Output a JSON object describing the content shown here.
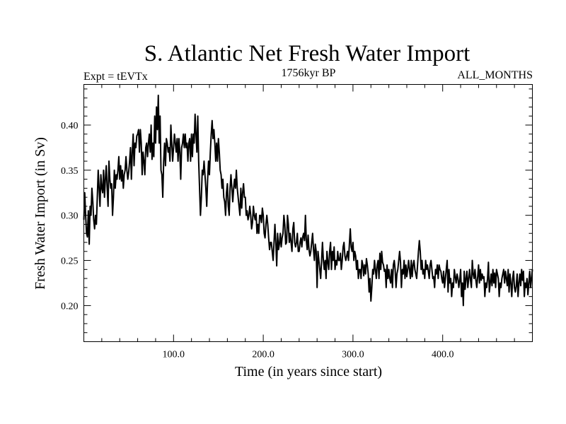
{
  "chart_data": {
    "type": "line",
    "title": "S. Atlantic Net Fresh Water Import",
    "subtitle_left": "Expt = tEVTx",
    "subtitle_center": "1756kyr BP",
    "subtitle_right": "ALL_MONTHS",
    "xlabel": "Time (in years since start)",
    "ylabel": "Fresh Water Import (in Sv)",
    "xlim": [
      0,
      500
    ],
    "ylim": [
      0.16,
      0.445
    ],
    "x_major_ticks": [
      100,
      200,
      300,
      400
    ],
    "x_tick_labels": [
      "100.0",
      "200.0",
      "300.0",
      "400.0"
    ],
    "y_major_ticks": [
      0.2,
      0.25,
      0.3,
      0.35,
      0.4
    ],
    "y_tick_labels": [
      "0.20",
      "0.25",
      "0.30",
      "0.35",
      "0.40"
    ],
    "grid": false,
    "series": [
      {
        "name": "Net Fresh Water Import",
        "x_start": 0,
        "x_step": 1,
        "values": [
          0.295,
          0.325,
          0.3,
          0.28,
          0.276,
          0.305,
          0.268,
          0.31,
          0.3,
          0.33,
          0.315,
          0.295,
          0.285,
          0.3,
          0.29,
          0.32,
          0.35,
          0.33,
          0.31,
          0.345,
          0.33,
          0.325,
          0.35,
          0.32,
          0.34,
          0.355,
          0.33,
          0.31,
          0.36,
          0.34,
          0.33,
          0.335,
          0.3,
          0.32,
          0.35,
          0.33,
          0.345,
          0.34,
          0.35,
          0.365,
          0.34,
          0.355,
          0.338,
          0.35,
          0.33,
          0.345,
          0.35,
          0.365,
          0.35,
          0.34,
          0.348,
          0.36,
          0.375,
          0.34,
          0.37,
          0.39,
          0.355,
          0.38,
          0.375,
          0.388,
          0.39,
          0.395,
          0.37,
          0.395,
          0.38,
          0.345,
          0.37,
          0.36,
          0.345,
          0.375,
          0.38,
          0.365,
          0.38,
          0.39,
          0.37,
          0.4,
          0.362,
          0.38,
          0.365,
          0.41,
          0.38,
          0.42,
          0.395,
          0.433,
          0.38,
          0.41,
          0.35,
          0.345,
          0.32,
          0.36,
          0.38,
          0.355,
          0.385,
          0.38,
          0.37,
          0.375,
          0.36,
          0.4,
          0.38,
          0.36,
          0.375,
          0.39,
          0.38,
          0.37,
          0.385,
          0.36,
          0.385,
          0.37,
          0.34,
          0.375,
          0.38,
          0.39,
          0.375,
          0.39,
          0.375,
          0.38,
          0.36,
          0.38,
          0.385,
          0.36,
          0.39,
          0.365,
          0.39,
          0.38,
          0.412,
          0.39,
          0.37,
          0.41,
          0.36,
          0.33,
          0.3,
          0.32,
          0.35,
          0.345,
          0.36,
          0.345,
          0.33,
          0.31,
          0.34,
          0.36,
          0.345,
          0.37,
          0.39,
          0.405,
          0.385,
          0.395,
          0.38,
          0.36,
          0.38,
          0.36,
          0.385,
          0.37,
          0.35,
          0.345,
          0.33,
          0.34,
          0.32,
          0.315,
          0.3,
          0.325,
          0.335,
          0.31,
          0.3,
          0.33,
          0.345,
          0.33,
          0.315,
          0.33,
          0.34,
          0.33,
          0.35,
          0.33,
          0.32,
          0.31,
          0.3,
          0.33,
          0.308,
          0.325,
          0.335,
          0.32,
          0.32,
          0.3,
          0.305,
          0.295,
          0.3,
          0.31,
          0.3,
          0.285,
          0.292,
          0.31,
          0.3,
          0.295,
          0.302,
          0.28,
          0.29,
          0.28,
          0.3,
          0.3,
          0.292,
          0.308,
          0.3,
          0.28,
          0.275,
          0.29,
          0.3,
          0.29,
          0.275,
          0.262,
          0.27,
          0.27,
          0.26,
          0.25,
          0.27,
          0.29,
          0.27,
          0.244,
          0.28,
          0.262,
          0.268,
          0.28,
          0.265,
          0.275,
          0.28,
          0.3,
          0.29,
          0.268,
          0.27,
          0.3,
          0.29,
          0.27,
          0.28,
          0.27,
          0.26,
          0.285,
          0.292,
          0.27,
          0.265,
          0.27,
          0.28,
          0.26,
          0.26,
          0.27,
          0.275,
          0.265,
          0.276,
          0.28,
          0.272,
          0.3,
          0.272,
          0.262,
          0.278,
          0.262,
          0.255,
          0.26,
          0.27,
          0.28,
          0.262,
          0.25,
          0.268,
          0.26,
          0.22,
          0.26,
          0.25,
          0.24,
          0.23,
          0.25,
          0.27,
          0.25,
          0.24,
          0.25,
          0.23,
          0.26,
          0.248,
          0.24,
          0.26,
          0.27,
          0.24,
          0.26,
          0.25,
          0.265,
          0.24,
          0.25,
          0.245,
          0.26,
          0.25,
          0.25,
          0.258,
          0.24,
          0.25,
          0.265,
          0.27,
          0.255,
          0.25,
          0.255,
          0.26,
          0.25,
          0.268,
          0.285,
          0.265,
          0.26,
          0.27,
          0.25,
          0.26,
          0.255,
          0.24,
          0.25,
          0.23,
          0.24,
          0.24,
          0.23,
          0.25,
          0.245,
          0.233,
          0.245,
          0.235,
          0.252,
          0.245,
          0.235,
          0.215,
          0.23,
          0.205,
          0.22,
          0.24,
          0.235,
          0.25,
          0.24,
          0.23,
          0.245,
          0.25,
          0.23,
          0.258,
          0.24,
          0.26,
          0.248,
          0.245,
          0.238,
          0.24,
          0.22,
          0.245,
          0.23,
          0.24,
          0.23,
          0.225,
          0.24,
          0.22,
          0.245,
          0.25,
          0.24,
          0.22,
          0.235,
          0.24,
          0.25,
          0.26,
          0.248,
          0.22,
          0.24,
          0.235,
          0.25,
          0.23,
          0.245,
          0.232,
          0.24,
          0.25,
          0.24,
          0.23,
          0.25,
          0.232,
          0.245,
          0.25,
          0.24,
          0.235,
          0.23,
          0.245,
          0.26,
          0.272,
          0.26,
          0.24,
          0.25,
          0.235,
          0.24,
          0.23,
          0.25,
          0.24,
          0.245,
          0.238,
          0.23,
          0.245,
          0.25,
          0.24,
          0.23,
          0.232,
          0.22,
          0.24,
          0.235,
          0.245,
          0.23,
          0.245,
          0.24,
          0.238,
          0.23,
          0.225,
          0.238,
          0.22,
          0.23,
          0.24,
          0.25,
          0.215,
          0.24,
          0.225,
          0.23,
          0.21,
          0.225,
          0.22,
          0.24,
          0.232,
          0.225,
          0.235,
          0.23,
          0.22,
          0.228,
          0.24,
          0.21,
          0.225,
          0.2,
          0.238,
          0.218,
          0.23,
          0.238,
          0.22,
          0.23,
          0.24,
          0.228,
          0.22,
          0.25,
          0.235,
          0.23,
          0.24,
          0.228,
          0.22,
          0.232,
          0.245,
          0.225,
          0.24,
          0.228,
          0.235,
          0.23,
          0.232,
          0.21,
          0.225,
          0.22,
          0.23,
          0.248,
          0.215,
          0.225,
          0.235,
          0.222,
          0.24,
          0.225,
          0.236,
          0.22,
          0.24,
          0.235,
          0.23,
          0.21,
          0.225,
          0.22,
          0.23,
          0.235,
          0.24,
          0.225,
          0.238,
          0.23,
          0.222,
          0.24,
          0.215,
          0.235,
          0.225,
          0.21,
          0.23,
          0.238,
          0.22,
          0.215,
          0.222,
          0.235,
          0.21,
          0.225,
          0.235,
          0.222,
          0.24,
          0.228,
          0.238,
          0.21,
          0.225,
          0.22,
          0.23,
          0.212,
          0.225,
          0.238,
          0.22,
          0.23,
          0.24
        ]
      }
    ]
  }
}
